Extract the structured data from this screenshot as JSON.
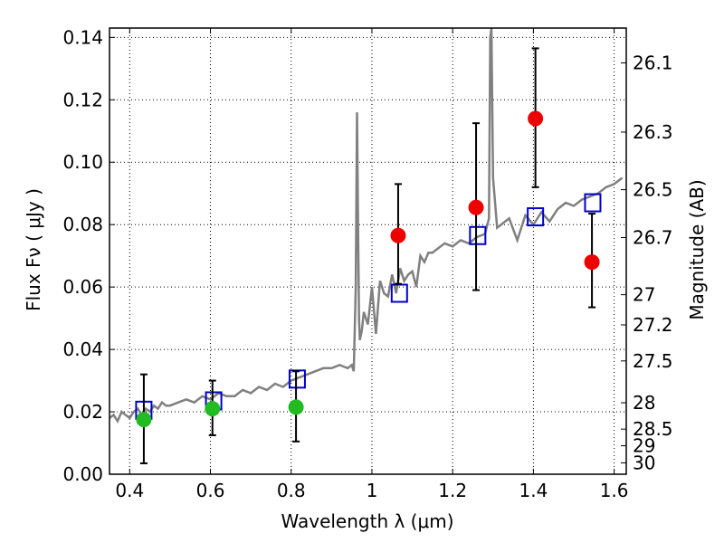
{
  "chart_data": {
    "type": "scatter",
    "xlabel": "Wavelength  λ (μm)",
    "ylabel": "Flux  Fν  ( μJy )",
    "ylabel_right": "Magnitude (AB)",
    "xlim": [
      0.35,
      1.63
    ],
    "ylim": [
      0.0,
      0.143
    ],
    "grid": true,
    "x_ticks": [
      0.4,
      0.6,
      0.8,
      1.0,
      1.2,
      1.4,
      1.6
    ],
    "x_tick_labels": [
      "0.4",
      "0.6",
      "0.8",
      "1",
      "1.2",
      "1.4",
      "1.6"
    ],
    "y_ticks": [
      0.0,
      0.02,
      0.04,
      0.06,
      0.08,
      0.1,
      0.12,
      0.14
    ],
    "y_tick_labels": [
      "0.00",
      "0.02",
      "0.04",
      "0.06",
      "0.08",
      "0.10",
      "0.12",
      "0.14"
    ],
    "right_tick_labels": [
      "26.1",
      "26.3",
      "26.5",
      "26.7",
      "27",
      "27.2",
      "27.5",
      "28",
      "28.5",
      "29",
      "30"
    ],
    "series": [
      {
        "kind": "line",
        "color": "#808080",
        "x": [
          0.35,
          0.36,
          0.37,
          0.38,
          0.39,
          0.4,
          0.41,
          0.42,
          0.43,
          0.44,
          0.45,
          0.46,
          0.47,
          0.48,
          0.49,
          0.5,
          0.52,
          0.54,
          0.56,
          0.58,
          0.6,
          0.62,
          0.64,
          0.66,
          0.68,
          0.7,
          0.72,
          0.74,
          0.76,
          0.78,
          0.8,
          0.82,
          0.84,
          0.86,
          0.88,
          0.9,
          0.92,
          0.94,
          0.95,
          0.955,
          0.96,
          0.963,
          0.966,
          0.968,
          0.97,
          0.975,
          0.98,
          0.99,
          1.0,
          1.01,
          1.02,
          1.03,
          1.04,
          1.05,
          1.06,
          1.07,
          1.08,
          1.09,
          1.1,
          1.11,
          1.12,
          1.13,
          1.14,
          1.15,
          1.16,
          1.17,
          1.18,
          1.2,
          1.22,
          1.24,
          1.26,
          1.28,
          1.29,
          1.293,
          1.296,
          1.3,
          1.31,
          1.32,
          1.34,
          1.36,
          1.38,
          1.4,
          1.42,
          1.44,
          1.46,
          1.48,
          1.5,
          1.52,
          1.54,
          1.56,
          1.58,
          1.6,
          1.62
        ],
        "y": [
          0.018,
          0.019,
          0.017,
          0.02,
          0.019,
          0.018,
          0.02,
          0.021,
          0.019,
          0.021,
          0.02,
          0.022,
          0.021,
          0.023,
          0.022,
          0.022,
          0.023,
          0.024,
          0.023,
          0.025,
          0.024,
          0.026,
          0.025,
          0.025,
          0.027,
          0.026,
          0.028,
          0.027,
          0.029,
          0.028,
          0.03,
          0.031,
          0.032,
          0.033,
          0.034,
          0.034,
          0.035,
          0.034,
          0.035,
          0.033,
          0.06,
          0.116,
          0.075,
          0.05,
          0.043,
          0.046,
          0.052,
          0.048,
          0.06,
          0.045,
          0.062,
          0.058,
          0.057,
          0.064,
          0.058,
          0.066,
          0.062,
          0.064,
          0.065,
          0.06,
          0.07,
          0.068,
          0.071,
          0.071,
          0.072,
          0.073,
          0.074,
          0.073,
          0.075,
          0.074,
          0.076,
          0.077,
          0.082,
          0.14,
          0.143,
          0.095,
          0.079,
          0.08,
          0.082,
          0.075,
          0.083,
          0.08,
          0.084,
          0.081,
          0.085,
          0.087,
          0.086,
          0.088,
          0.089,
          0.09,
          0.092,
          0.093,
          0.095
        ]
      },
      {
        "kind": "open-square",
        "color": "#0000cc",
        "x": [
          0.435,
          0.608,
          0.815,
          1.068,
          1.262,
          1.405,
          1.547
        ],
        "y": [
          0.0205,
          0.0235,
          0.0305,
          0.058,
          0.0765,
          0.0825,
          0.087
        ]
      },
      {
        "kind": "errorbar-point",
        "color": "#22bb22",
        "x": [
          0.435,
          0.605,
          0.812
        ],
        "y": [
          0.0175,
          0.021,
          0.0215
        ],
        "yerr_low": [
          0.0035,
          0.0125,
          0.0105
        ],
        "yerr_high": [
          0.032,
          0.03,
          0.033
        ]
      },
      {
        "kind": "errorbar-point",
        "color": "#ee0000",
        "x": [
          1.065,
          1.258,
          1.405,
          1.545
        ],
        "y": [
          0.0765,
          0.0855,
          0.114,
          0.068
        ],
        "yerr_low": [
          0.061,
          0.059,
          0.092,
          0.0535
        ],
        "yerr_high": [
          0.093,
          0.1125,
          0.1365,
          0.0835
        ]
      }
    ]
  }
}
